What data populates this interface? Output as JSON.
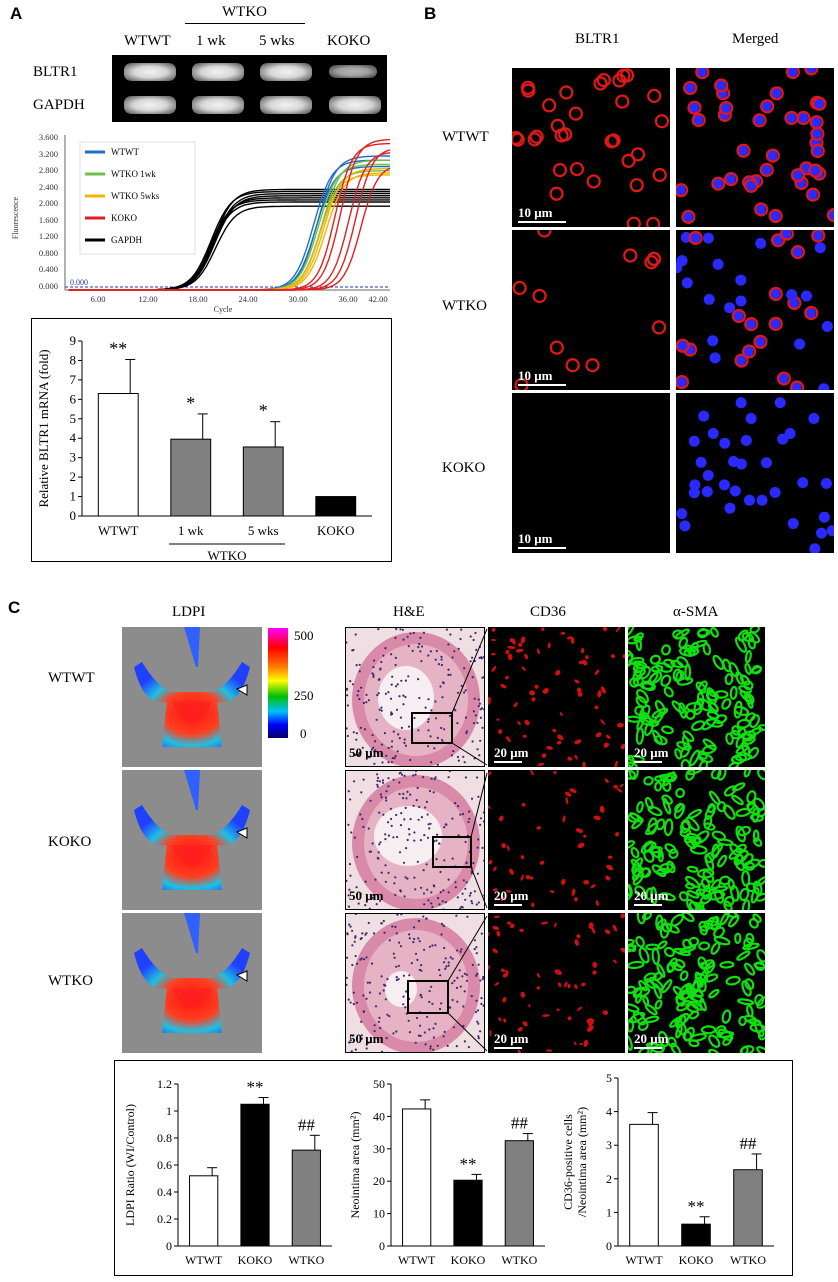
{
  "panel_A": {
    "letter": "A",
    "gel": {
      "group_label": "WTKO",
      "lanes": [
        "WTWT",
        "1 wk",
        "5 wks",
        "KOKO"
      ],
      "rows": [
        "BLTR1",
        "GAPDH"
      ]
    },
    "qpcr": {
      "y_axis_label": "Fluorescence",
      "x_axis_label": "Cycle",
      "y_ticks": [
        "3.600",
        "3.200",
        "2.800",
        "2.400",
        "2.000",
        "1.600",
        "1.200",
        "0.800",
        "0.400",
        "0.000"
      ],
      "x_ticks": [
        "6.00",
        "12.00",
        "18.00",
        "24.00",
        "30.00",
        "36.00",
        "42.00"
      ],
      "threshold_label": "0.000",
      "legend": [
        {
          "name": "WTWT",
          "color": "#1f6fc4"
        },
        {
          "name": "WTKO 1wk",
          "color": "#6cc24a"
        },
        {
          "name": "WTKO 5wks",
          "color": "#f4b400"
        },
        {
          "name": "KOKO",
          "color": "#e02020"
        },
        {
          "name": "GAPDH",
          "color": "#000000"
        }
      ]
    }
  },
  "panel_B": {
    "letter": "B",
    "col_headers": [
      "BLTR1",
      "Merged"
    ],
    "rows": [
      "WTWT",
      "WTKO",
      "KOKO"
    ],
    "scale": "10 μm"
  },
  "panel_C": {
    "letter": "C",
    "ldpi_header": "LDPI",
    "col_headers": [
      "H&E",
      "CD36",
      "α-SMA"
    ],
    "rows": [
      "WTWT",
      "KOKO",
      "WTKO"
    ],
    "colorbar_ticks": [
      "500",
      "250",
      "0"
    ],
    "scale_he": "50 μm",
    "scale_fluo": "20 μm"
  },
  "chart_data": [
    {
      "type": "bar",
      "ylabel": "Relative BLTR1 mRNA (fold)",
      "categories": [
        "WTWT",
        "1 wk",
        "5 wks",
        "KOKO"
      ],
      "group_label": "WTKO",
      "values": [
        6.3,
        3.95,
        3.55,
        1.0
      ],
      "errors": [
        1.75,
        1.3,
        1.3,
        0
      ],
      "significance": [
        "**",
        "*",
        "*",
        ""
      ],
      "colors": [
        "#ffffff",
        "#808080",
        "#808080",
        "#000000"
      ],
      "ylim": [
        0,
        9
      ],
      "yticks": [
        "0",
        "1",
        "2",
        "3",
        "4",
        "5",
        "6",
        "7",
        "8",
        "9"
      ]
    },
    {
      "type": "bar",
      "ylabel": "LDPI Ratio (WI/Control)",
      "categories": [
        "WTWT",
        "KOKO",
        "WTKO"
      ],
      "values": [
        0.52,
        1.05,
        0.71
      ],
      "errors": [
        0.06,
        0.05,
        0.11
      ],
      "significance": [
        "",
        "**",
        "##"
      ],
      "colors": [
        "#ffffff",
        "#000000",
        "#808080"
      ],
      "ylim": [
        0,
        1.2
      ],
      "yticks": [
        "0",
        "0.2",
        "0.4",
        "0.6",
        "0.8",
        "1",
        "1.2"
      ]
    },
    {
      "type": "bar",
      "ylabel": "Neointima area (mm²)",
      "categories": [
        "WTWT",
        "KOKO",
        "WTKO"
      ],
      "values": [
        42.3,
        20.3,
        32.5
      ],
      "errors": [
        2.8,
        1.8,
        2.2
      ],
      "significance": [
        "",
        "**",
        "##"
      ],
      "colors": [
        "#ffffff",
        "#000000",
        "#808080"
      ],
      "ylim": [
        0,
        50
      ],
      "yticks": [
        "0",
        "10",
        "20",
        "30",
        "40",
        "50"
      ]
    },
    {
      "type": "bar",
      "ylabel": "CD36-positive cells /Neointima area (mm²)",
      "categories": [
        "WTWT",
        "KOKO",
        "WTKO"
      ],
      "values": [
        3.62,
        0.65,
        2.27
      ],
      "errors": [
        0.35,
        0.22,
        0.47
      ],
      "significance": [
        "",
        "**",
        "##"
      ],
      "colors": [
        "#ffffff",
        "#000000",
        "#808080"
      ],
      "ylim": [
        0,
        5
      ],
      "yticks": [
        "0",
        "1",
        "2",
        "3",
        "4",
        "5"
      ]
    }
  ]
}
